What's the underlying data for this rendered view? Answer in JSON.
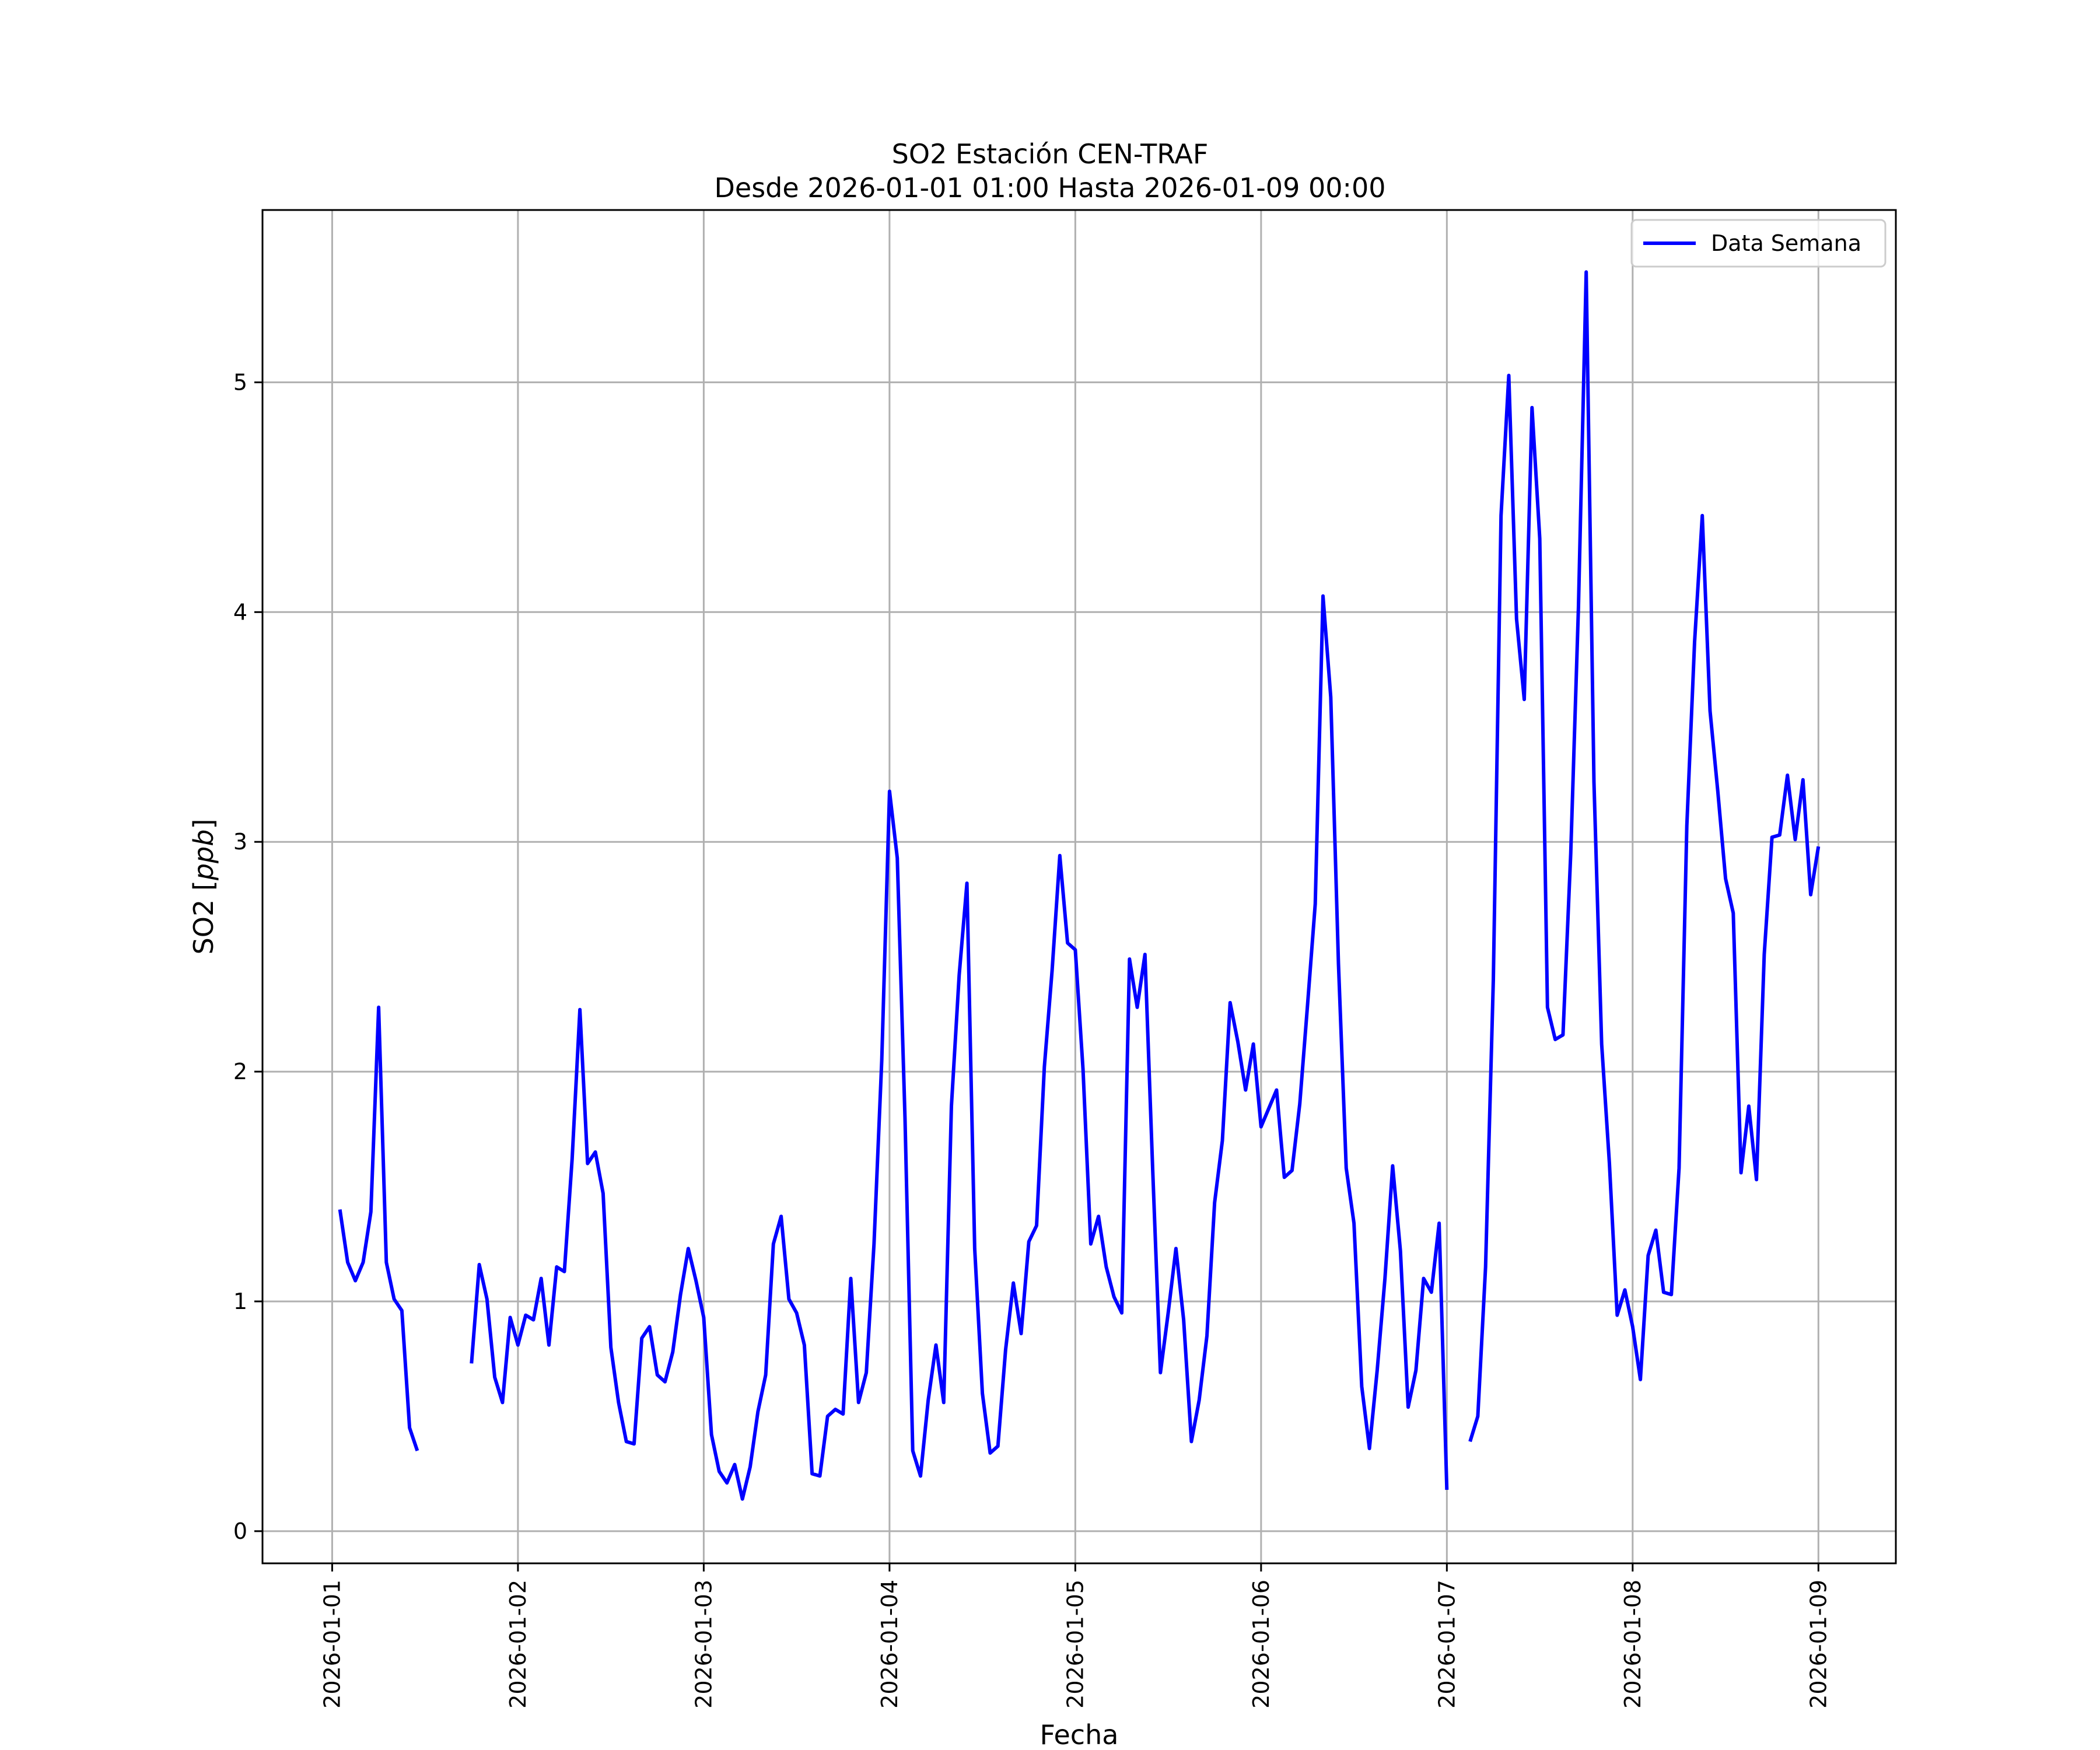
{
  "chart_data": {
    "type": "line",
    "title": "SO2 Estación CEN-TRAF",
    "subtitle": "Desde 2026-01-01 01:00 Hasta 2026-01-09 00:00",
    "xlabel": "Fecha",
    "ylabel_prefix": "SO2 [",
    "ylabel_unit": "ppb",
    "ylabel_suffix": "]",
    "xlim": [
      "2025-12-31T15:00",
      "2026-01-09T10:00"
    ],
    "ylim": [
      -0.14,
      5.75
    ],
    "x_ticks": [
      "2026-01-01",
      "2026-01-02",
      "2026-01-03",
      "2026-01-04",
      "2026-01-05",
      "2026-01-06",
      "2026-01-07",
      "2026-01-08",
      "2026-01-09"
    ],
    "y_ticks": [
      0,
      1,
      2,
      3,
      4,
      5
    ],
    "y_tick_labels": [
      "0",
      "1",
      "2",
      "3",
      "4",
      "5"
    ],
    "grid": true,
    "legend_position": "top-right",
    "series": [
      {
        "name": "Data Semana",
        "color": "#0000ff",
        "segments": [
          [
            [
              "2026-01-01T01:00",
              1.4
            ],
            [
              "2026-01-01T02:00",
              1.17
            ],
            [
              "2026-01-01T03:00",
              1.09
            ],
            [
              "2026-01-01T04:00",
              1.17
            ],
            [
              "2026-01-01T05:00",
              1.39
            ],
            [
              "2026-01-01T06:00",
              2.28
            ],
            [
              "2026-01-01T07:00",
              1.17
            ],
            [
              "2026-01-01T08:00",
              1.01
            ],
            [
              "2026-01-01T09:00",
              0.96
            ],
            [
              "2026-01-01T10:00",
              0.45
            ],
            [
              "2026-01-01T11:00",
              0.35
            ]
          ],
          [
            [
              "2026-01-01T18:00",
              0.73
            ],
            [
              "2026-01-01T19:00",
              1.16
            ],
            [
              "2026-01-01T20:00",
              1.01
            ],
            [
              "2026-01-01T21:00",
              0.67
            ],
            [
              "2026-01-01T22:00",
              0.56
            ],
            [
              "2026-01-01T23:00",
              0.93
            ],
            [
              "2026-01-02T00:00",
              0.81
            ],
            [
              "2026-01-02T01:00",
              0.94
            ],
            [
              "2026-01-02T02:00",
              0.92
            ],
            [
              "2026-01-02T03:00",
              1.1
            ],
            [
              "2026-01-02T04:00",
              0.81
            ],
            [
              "2026-01-02T05:00",
              1.15
            ],
            [
              "2026-01-02T06:00",
              1.13
            ],
            [
              "2026-01-02T07:00",
              1.62
            ],
            [
              "2026-01-02T08:00",
              2.27
            ],
            [
              "2026-01-02T09:00",
              1.6
            ],
            [
              "2026-01-02T10:00",
              1.65
            ],
            [
              "2026-01-02T11:00",
              1.47
            ],
            [
              "2026-01-02T12:00",
              0.8
            ],
            [
              "2026-01-02T13:00",
              0.56
            ],
            [
              "2026-01-02T14:00",
              0.39
            ],
            [
              "2026-01-02T15:00",
              0.38
            ],
            [
              "2026-01-02T16:00",
              0.84
            ],
            [
              "2026-01-02T17:00",
              0.89
            ],
            [
              "2026-01-02T18:00",
              0.68
            ],
            [
              "2026-01-02T19:00",
              0.65
            ],
            [
              "2026-01-02T20:00",
              0.78
            ],
            [
              "2026-01-02T21:00",
              1.03
            ],
            [
              "2026-01-02T22:00",
              1.23
            ],
            [
              "2026-01-02T23:00",
              1.09
            ],
            [
              "2026-01-03T00:00",
              0.93
            ],
            [
              "2026-01-03T01:00",
              0.42
            ],
            [
              "2026-01-03T02:00",
              0.26
            ],
            [
              "2026-01-03T03:00",
              0.21
            ],
            [
              "2026-01-03T04:00",
              0.29
            ],
            [
              "2026-01-03T05:00",
              0.14
            ],
            [
              "2026-01-03T06:00",
              0.28
            ],
            [
              "2026-01-03T07:00",
              0.52
            ],
            [
              "2026-01-03T08:00",
              0.68
            ],
            [
              "2026-01-03T09:00",
              1.25
            ],
            [
              "2026-01-03T10:00",
              1.37
            ],
            [
              "2026-01-03T11:00",
              1.01
            ],
            [
              "2026-01-03T12:00",
              0.95
            ],
            [
              "2026-01-03T13:00",
              0.81
            ],
            [
              "2026-01-03T14:00",
              0.25
            ],
            [
              "2026-01-03T15:00",
              0.24
            ],
            [
              "2026-01-03T16:00",
              0.5
            ],
            [
              "2026-01-03T17:00",
              0.53
            ],
            [
              "2026-01-03T18:00",
              0.51
            ],
            [
              "2026-01-03T19:00",
              1.1
            ],
            [
              "2026-01-03T20:00",
              0.56
            ],
            [
              "2026-01-03T21:00",
              0.69
            ],
            [
              "2026-01-03T22:00",
              1.25
            ],
            [
              "2026-01-03T23:00",
              2.05
            ],
            [
              "2026-01-04T00:00",
              3.22
            ],
            [
              "2026-01-04T01:00",
              2.93
            ],
            [
              "2026-01-04T02:00",
              1.8
            ],
            [
              "2026-01-04T03:00",
              0.35
            ],
            [
              "2026-01-04T04:00",
              0.24
            ],
            [
              "2026-01-04T05:00",
              0.57
            ],
            [
              "2026-01-04T06:00",
              0.81
            ],
            [
              "2026-01-04T07:00",
              0.56
            ],
            [
              "2026-01-04T08:00",
              1.85
            ],
            [
              "2026-01-04T09:00",
              2.42
            ],
            [
              "2026-01-04T10:00",
              2.82
            ],
            [
              "2026-01-04T11:00",
              1.23
            ],
            [
              "2026-01-04T12:00",
              0.6
            ],
            [
              "2026-01-04T13:00",
              0.34
            ],
            [
              "2026-01-04T14:00",
              0.37
            ],
            [
              "2026-01-04T15:00",
              0.79
            ],
            [
              "2026-01-04T16:00",
              1.08
            ],
            [
              "2026-01-04T17:00",
              0.86
            ],
            [
              "2026-01-04T18:00",
              1.26
            ],
            [
              "2026-01-04T19:00",
              1.33
            ],
            [
              "2026-01-04T20:00",
              2.02
            ],
            [
              "2026-01-04T21:00",
              2.44
            ],
            [
              "2026-01-04T22:00",
              2.94
            ],
            [
              "2026-01-04T23:00",
              2.56
            ],
            [
              "2026-01-05T00:00",
              2.53
            ],
            [
              "2026-01-05T01:00",
              2.01
            ],
            [
              "2026-01-05T02:00",
              1.25
            ],
            [
              "2026-01-05T03:00",
              1.37
            ],
            [
              "2026-01-05T04:00",
              1.15
            ],
            [
              "2026-01-05T05:00",
              1.02
            ],
            [
              "2026-01-05T06:00",
              0.95
            ],
            [
              "2026-01-05T07:00",
              2.49
            ],
            [
              "2026-01-05T08:00",
              2.28
            ],
            [
              "2026-01-05T09:00",
              2.51
            ],
            [
              "2026-01-05T10:00",
              1.57
            ],
            [
              "2026-01-05T11:00",
              0.69
            ],
            [
              "2026-01-05T12:00",
              0.95
            ],
            [
              "2026-01-05T13:00",
              1.23
            ],
            [
              "2026-01-05T14:00",
              0.92
            ],
            [
              "2026-01-05T15:00",
              0.39
            ],
            [
              "2026-01-05T16:00",
              0.57
            ],
            [
              "2026-01-05T17:00",
              0.85
            ],
            [
              "2026-01-05T18:00",
              1.43
            ],
            [
              "2026-01-05T19:00",
              1.7
            ],
            [
              "2026-01-05T20:00",
              2.3
            ],
            [
              "2026-01-05T21:00",
              2.13
            ],
            [
              "2026-01-05T22:00",
              1.92
            ],
            [
              "2026-01-05T23:00",
              2.12
            ],
            [
              "2026-01-06T00:00",
              1.76
            ],
            [
              "2026-01-06T01:00",
              1.84
            ],
            [
              "2026-01-06T02:00",
              1.92
            ],
            [
              "2026-01-06T03:00",
              1.54
            ],
            [
              "2026-01-06T04:00",
              1.57
            ],
            [
              "2026-01-06T05:00",
              1.86
            ],
            [
              "2026-01-06T06:00",
              2.29
            ],
            [
              "2026-01-06T07:00",
              2.73
            ],
            [
              "2026-01-06T08:00",
              4.07
            ],
            [
              "2026-01-06T09:00",
              3.63
            ],
            [
              "2026-01-06T10:00",
              2.47
            ],
            [
              "2026-01-06T11:00",
              1.58
            ],
            [
              "2026-01-06T12:00",
              1.34
            ],
            [
              "2026-01-06T13:00",
              0.63
            ],
            [
              "2026-01-06T14:00",
              0.36
            ],
            [
              "2026-01-06T15:00",
              0.7
            ],
            [
              "2026-01-06T16:00",
              1.1
            ],
            [
              "2026-01-06T17:00",
              1.59
            ],
            [
              "2026-01-06T18:00",
              1.22
            ],
            [
              "2026-01-06T19:00",
              0.54
            ],
            [
              "2026-01-06T20:00",
              0.7
            ],
            [
              "2026-01-06T21:00",
              1.1
            ],
            [
              "2026-01-06T22:00",
              1.04
            ],
            [
              "2026-01-06T23:00",
              1.34
            ],
            [
              "2026-01-07T00:00",
              0.18
            ]
          ],
          [
            [
              "2026-01-07T03:00",
              0.39
            ],
            [
              "2026-01-07T04:00",
              0.5
            ],
            [
              "2026-01-07T05:00",
              1.15
            ],
            [
              "2026-01-07T06:00",
              2.4
            ],
            [
              "2026-01-07T07:00",
              4.42
            ],
            [
              "2026-01-07T08:00",
              5.03
            ],
            [
              "2026-01-07T09:00",
              3.97
            ],
            [
              "2026-01-07T10:00",
              3.62
            ],
            [
              "2026-01-07T11:00",
              4.89
            ],
            [
              "2026-01-07T12:00",
              4.32
            ],
            [
              "2026-01-07T13:00",
              2.28
            ],
            [
              "2026-01-07T14:00",
              2.14
            ],
            [
              "2026-01-07T15:00",
              2.16
            ],
            [
              "2026-01-07T16:00",
              2.95
            ],
            [
              "2026-01-07T17:00",
              4.02
            ],
            [
              "2026-01-07T18:00",
              5.48
            ],
            [
              "2026-01-07T19:00",
              3.26
            ],
            [
              "2026-01-07T20:00",
              2.12
            ],
            [
              "2026-01-07T21:00",
              1.6
            ],
            [
              "2026-01-07T22:00",
              0.94
            ],
            [
              "2026-01-07T23:00",
              1.05
            ],
            [
              "2026-01-08T00:00",
              0.89
            ],
            [
              "2026-01-08T01:00",
              0.66
            ],
            [
              "2026-01-08T02:00",
              1.2
            ],
            [
              "2026-01-08T03:00",
              1.31
            ],
            [
              "2026-01-08T04:00",
              1.04
            ],
            [
              "2026-01-08T05:00",
              1.03
            ],
            [
              "2026-01-08T06:00",
              1.58
            ],
            [
              "2026-01-08T07:00",
              3.07
            ],
            [
              "2026-01-08T08:00",
              3.87
            ],
            [
              "2026-01-08T09:00",
              4.42
            ],
            [
              "2026-01-08T10:00",
              3.57
            ],
            [
              "2026-01-08T11:00",
              3.22
            ],
            [
              "2026-01-08T12:00",
              2.84
            ],
            [
              "2026-01-08T13:00",
              2.69
            ],
            [
              "2026-01-08T14:00",
              1.56
            ],
            [
              "2026-01-08T15:00",
              1.85
            ],
            [
              "2026-01-08T16:00",
              1.53
            ],
            [
              "2026-01-08T17:00",
              2.51
            ],
            [
              "2026-01-08T18:00",
              3.02
            ],
            [
              "2026-01-08T19:00",
              3.03
            ],
            [
              "2026-01-08T20:00",
              3.29
            ],
            [
              "2026-01-08T21:00",
              3.01
            ],
            [
              "2026-01-08T22:00",
              3.27
            ],
            [
              "2026-01-08T23:00",
              2.77
            ],
            [
              "2026-01-09T00:00",
              2.98
            ]
          ]
        ]
      }
    ]
  }
}
